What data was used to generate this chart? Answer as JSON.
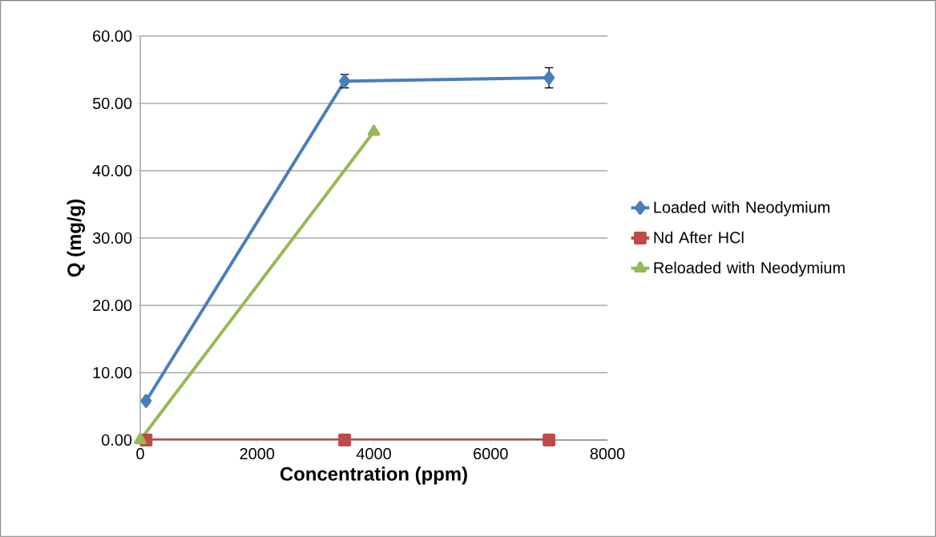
{
  "chart_data": {
    "type": "line",
    "xlabel": "Concentration (ppm)",
    "ylabel": "Q (mg/g)",
    "xlim": [
      0,
      8000
    ],
    "xticks": [
      0,
      2000,
      4000,
      6000,
      8000
    ],
    "ylim": [
      0,
      60
    ],
    "yticks": [
      {
        "value": 0,
        "label": "0.00"
      },
      {
        "value": 10,
        "label": "10.00"
      },
      {
        "value": 20,
        "label": "20.00"
      },
      {
        "value": 30,
        "label": "30.00"
      },
      {
        "value": 40,
        "label": "40.00"
      },
      {
        "value": 50,
        "label": "50.00"
      },
      {
        "value": 60,
        "label": "60.00"
      }
    ],
    "grid": "y",
    "legend": "right",
    "series": [
      {
        "name": "Loaded with Neodymium",
        "color": "#4a7ebb",
        "marker": "diamond",
        "x": [
          100,
          3500,
          7000
        ],
        "values": [
          5.8,
          53.3,
          53.8
        ],
        "errors": [
          null,
          1.0,
          1.5
        ]
      },
      {
        "name": "Nd After HCl",
        "color": "#be4b48",
        "marker": "square",
        "x": [
          100,
          3500,
          7000
        ],
        "values": [
          0,
          0,
          0
        ]
      },
      {
        "name": "Reloaded with Neodymium",
        "color": "#98b954",
        "marker": "triangle",
        "x": [
          0,
          4000
        ],
        "values": [
          0,
          45.8
        ]
      }
    ]
  }
}
